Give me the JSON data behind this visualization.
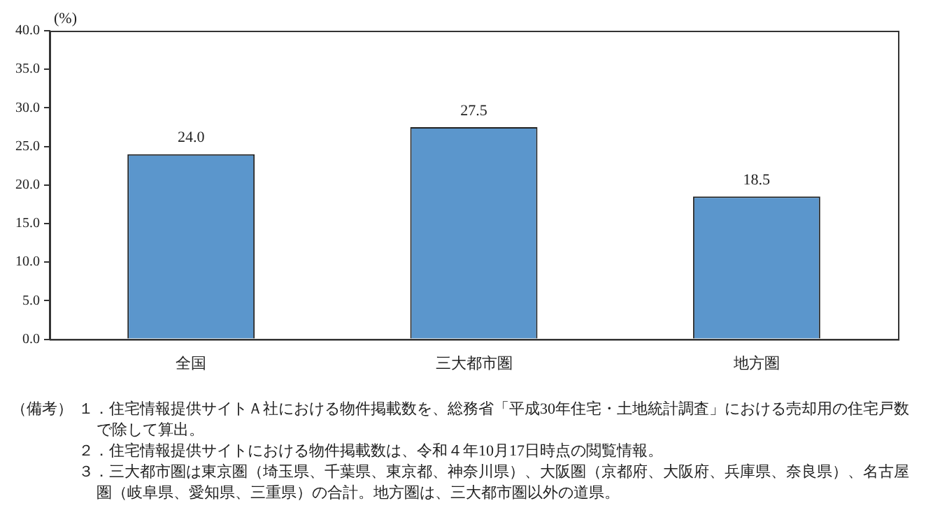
{
  "chart_data": {
    "type": "bar",
    "ylabel": "(%)",
    "categories": [
      "全国",
      "三大都市圏",
      "地方圏"
    ],
    "values": [
      24.0,
      27.5,
      18.5
    ],
    "color": "#5b96cc",
    "value_labels": [
      "24.0",
      "27.5",
      "18.5"
    ],
    "ylim": [
      0,
      40
    ],
    "yticks": [
      {
        "value": 0,
        "label": "0.0"
      },
      {
        "value": 5,
        "label": "5.0"
      },
      {
        "value": 10,
        "label": "10.0"
      },
      {
        "value": 15,
        "label": "15.0"
      },
      {
        "value": 20,
        "label": "20.0"
      },
      {
        "value": 25,
        "label": "25.0"
      },
      {
        "value": 30,
        "label": "30.0"
      },
      {
        "value": 35,
        "label": "35.0"
      },
      {
        "value": 40,
        "label": "40.0"
      }
    ],
    "grid": false,
    "legend": false,
    "annotations": [
      "（備考）",
      "１．住宅情報提供サイトＡ社における物件掲載数を、総務省「平成30年住宅・土地統計調査」における売却用の住宅戸数で除して算出。",
      "２．住宅情報提供サイトにおける物件掲載数は、令和４年10月17日時点の閲覧情報。",
      "３．三大都市圏は東京圏（埼玉県、千葉県、東京都、神奈川県）、大阪圏（京都府、大阪府、兵庫県、奈良県）、名古屋圏（岐阜県、愛知県、三重県）の合計。地方圏は、三大都市圏以外の道県。"
    ]
  }
}
